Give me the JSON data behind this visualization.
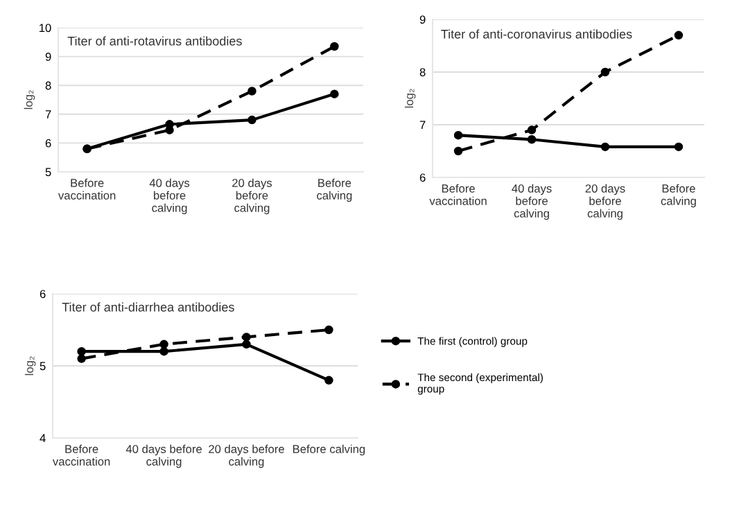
{
  "chart_data": [
    {
      "type": "line",
      "title": "Titer of anti-rotavirus antibodies",
      "ylabel": "log₂",
      "categories": [
        "Before\nvaccination",
        "40 days\nbefore\ncalving",
        "20 days\nbefore\ncalving",
        "Before\ncalving"
      ],
      "ylim": [
        5,
        10
      ],
      "yticks": [
        5,
        6,
        7,
        8,
        9,
        10
      ],
      "grid": "y",
      "marker": "circle",
      "series": [
        {
          "color": "#000000",
          "line_style": "solid",
          "values": [
            5.8,
            6.65,
            6.8,
            7.7
          ]
        },
        {
          "color": "#000000",
          "line_style": "dashed",
          "values": [
            5.8,
            6.45,
            7.8,
            9.35
          ]
        }
      ]
    },
    {
      "type": "line",
      "title": "Titer of anti-coronavirus antibodies",
      "ylabel": "log₂",
      "categories": [
        "Before\nvaccination",
        "40 days\nbefore\ncalving",
        "20 days\nbefore\ncalving",
        "Before\ncalving"
      ],
      "ylim": [
        6,
        9
      ],
      "yticks": [
        6,
        7,
        8,
        9
      ],
      "grid": "y",
      "marker": "circle",
      "series": [
        {
          "color": "#000000",
          "line_style": "solid",
          "values": [
            6.8,
            6.72,
            6.58,
            6.58
          ]
        },
        {
          "color": "#000000",
          "line_style": "dashed",
          "values": [
            6.5,
            6.9,
            8.0,
            8.7
          ]
        }
      ]
    },
    {
      "type": "line",
      "title": "Titer of anti-diarrhea antibodies",
      "ylabel": "log₂",
      "categories": [
        "Before\nvaccination",
        "40 days before\ncalving",
        "20 days before\ncalving",
        "Before calving"
      ],
      "ylim": [
        4,
        6
      ],
      "yticks": [
        4,
        5,
        6
      ],
      "grid": "y",
      "marker": "circle",
      "legend": "right",
      "series": [
        {
          "name": "The first (control) group",
          "color": "#000000",
          "line_style": "solid",
          "values": [
            5.2,
            5.2,
            5.3,
            4.8
          ]
        },
        {
          "name": "The second (experimental)\ngroup",
          "color": "#000000",
          "line_style": "dashed",
          "values": [
            5.1,
            5.3,
            5.4,
            5.5
          ]
        }
      ]
    }
  ]
}
